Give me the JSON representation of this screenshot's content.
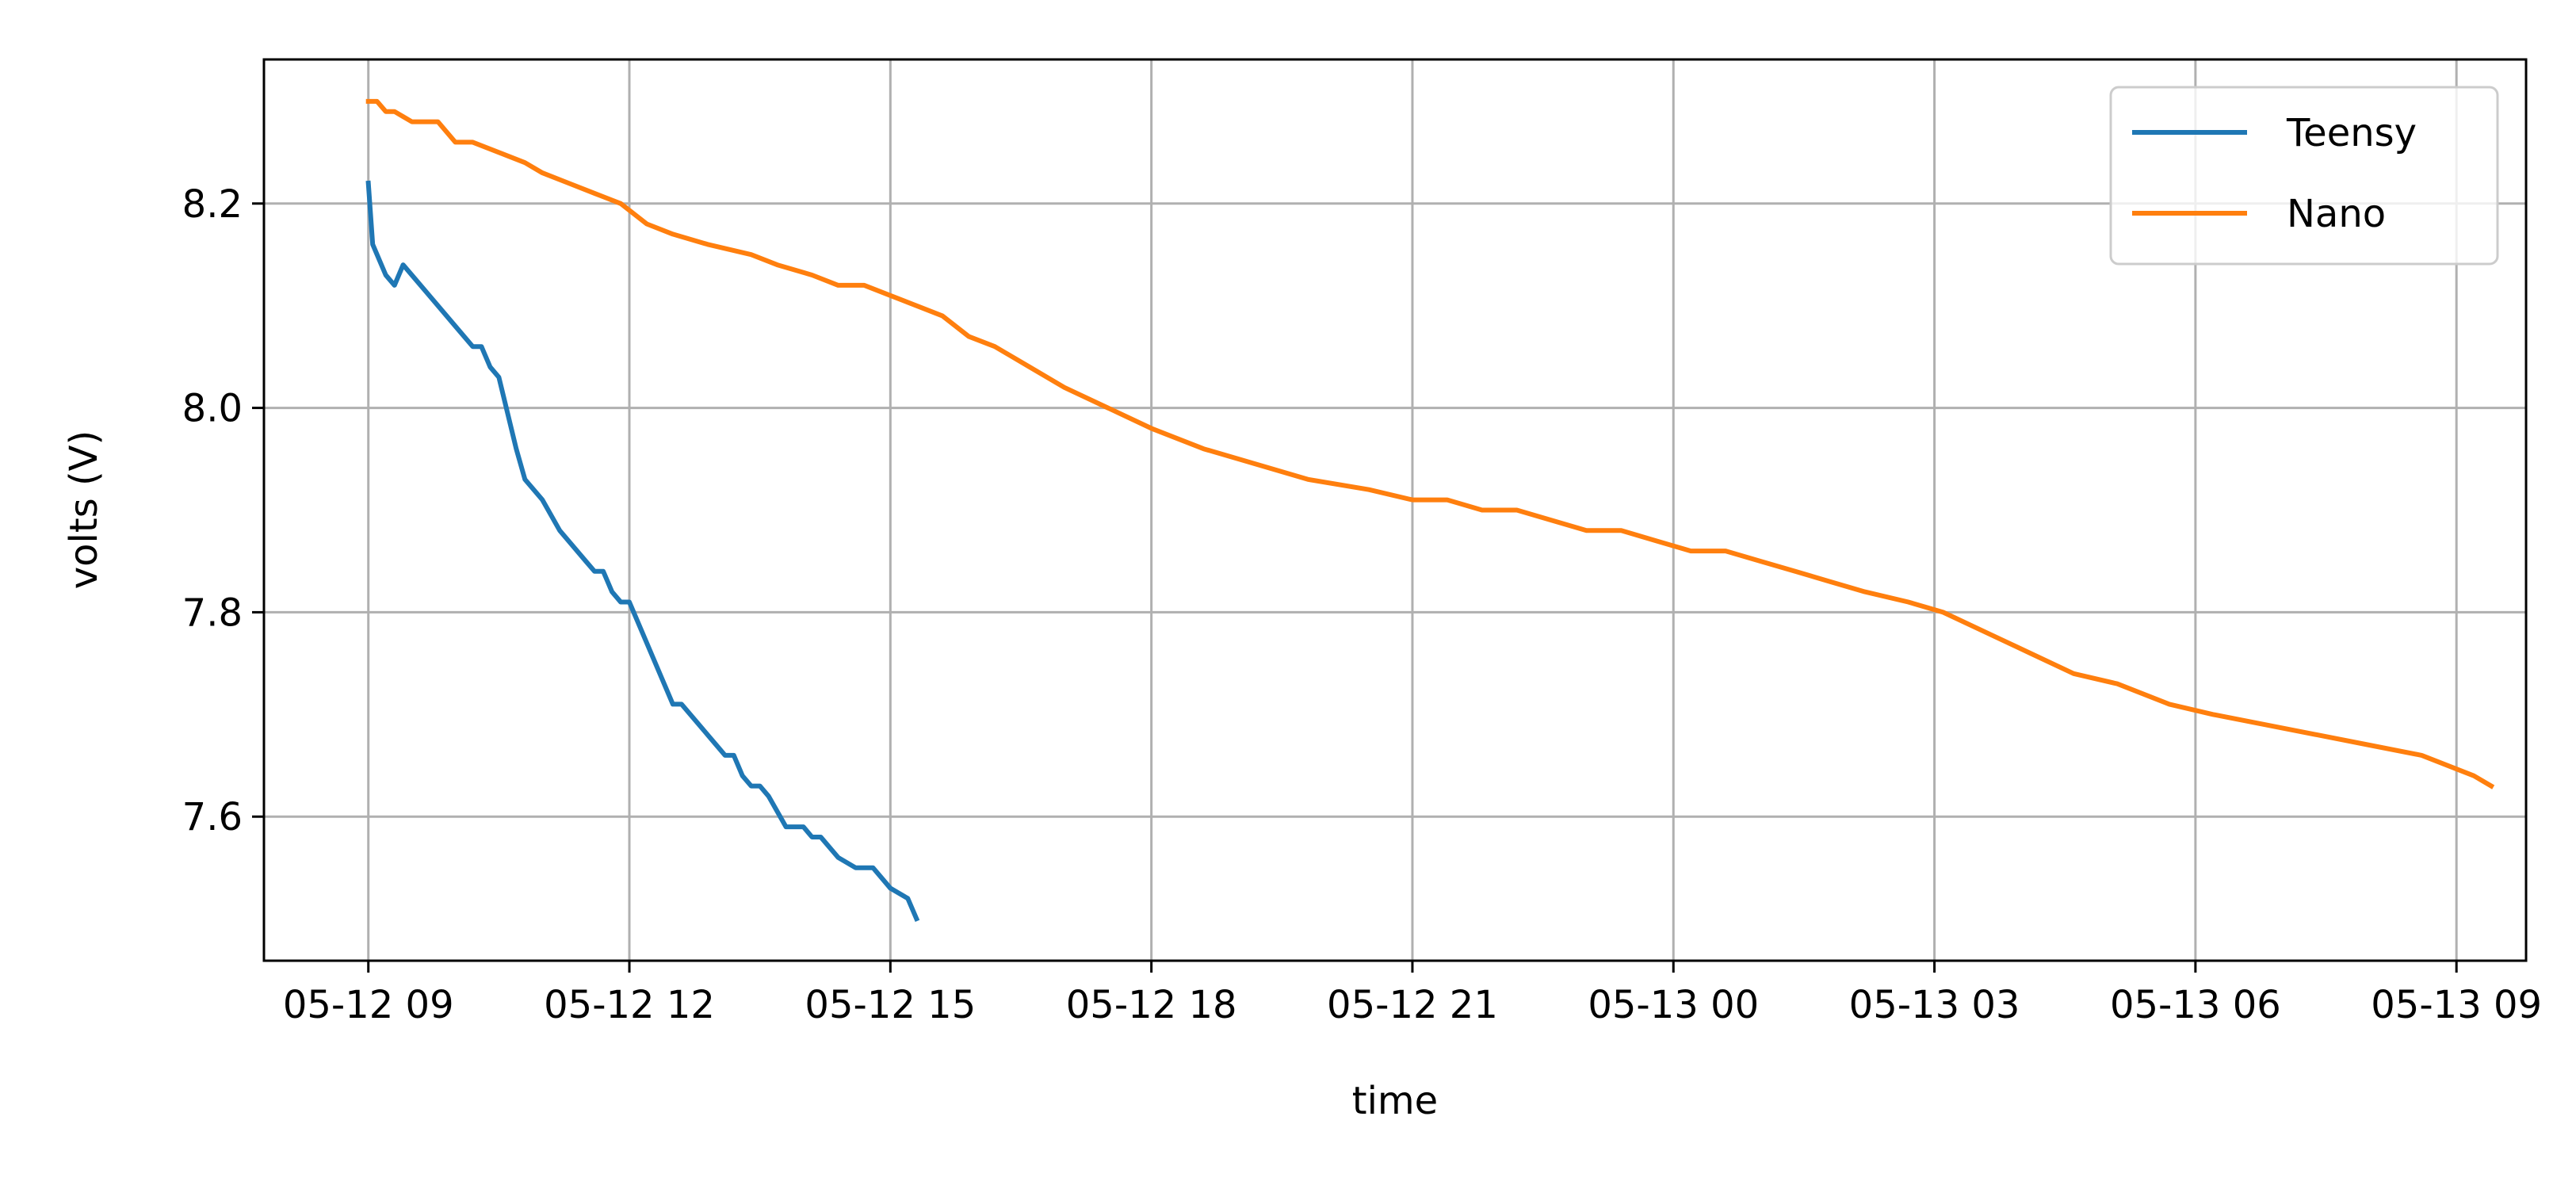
{
  "chart_data": {
    "type": "line",
    "title": "",
    "xlabel": "time",
    "ylabel": "volts (V)",
    "x_ticks": [
      "05-12 09",
      "05-12 12",
      "05-12 15",
      "05-12 18",
      "05-12 21",
      "05-13 00",
      "05-13 03",
      "05-13 06",
      "05-13 09"
    ],
    "xlim": [
      "2024-05-12 07:48",
      "2024-05-13 09:48"
    ],
    "y_ticks": [
      "7.6",
      "7.8",
      "8.0",
      "8.2"
    ],
    "ylim": [
      7.459,
      8.341
    ],
    "grid": true,
    "legend": {
      "placement": "upper-right",
      "entries": [
        "Teensy",
        "Nano"
      ]
    },
    "colors": {
      "Teensy": "#1f77b4",
      "Nano": "#ff7f0e",
      "grid": "#b0b0b0",
      "axes": "#000000"
    },
    "series": [
      {
        "name": "Teensy",
        "x": [
          "05-12 09:00",
          "05-12 09:03",
          "05-12 09:06",
          "05-12 09:12",
          "05-12 09:18",
          "05-12 09:24",
          "05-12 09:30",
          "05-12 09:42",
          "05-12 10:00",
          "05-12 10:12",
          "05-12 10:18",
          "05-12 10:24",
          "05-12 10:30",
          "05-12 10:42",
          "05-12 10:48",
          "05-12 11:00",
          "05-12 11:12",
          "05-12 11:30",
          "05-12 11:36",
          "05-12 11:42",
          "05-12 11:48",
          "05-12 11:54",
          "05-12 12:00",
          "05-12 12:30",
          "05-12 12:36",
          "05-12 13:00",
          "05-12 13:06",
          "05-12 13:12",
          "05-12 13:18",
          "05-12 13:24",
          "05-12 13:30",
          "05-12 13:36",
          "05-12 13:48",
          "05-12 14:00",
          "05-12 14:06",
          "05-12 14:12",
          "05-12 14:24",
          "05-12 14:36",
          "05-12 14:48",
          "05-12 15:00",
          "05-12 15:12",
          "05-12 15:18"
        ],
        "y": [
          8.22,
          8.16,
          8.15,
          8.13,
          8.12,
          8.14,
          8.13,
          8.11,
          8.08,
          8.06,
          8.06,
          8.04,
          8.03,
          7.96,
          7.93,
          7.91,
          7.88,
          7.85,
          7.84,
          7.84,
          7.82,
          7.81,
          7.81,
          7.71,
          7.71,
          7.67,
          7.66,
          7.66,
          7.64,
          7.63,
          7.63,
          7.62,
          7.59,
          7.59,
          7.58,
          7.58,
          7.56,
          7.55,
          7.55,
          7.53,
          7.52,
          7.5
        ]
      },
      {
        "name": "Nano",
        "x": [
          "05-12 09:00",
          "05-12 09:06",
          "05-12 09:12",
          "05-12 09:18",
          "05-12 09:30",
          "05-12 09:48",
          "05-12 10:00",
          "05-12 10:12",
          "05-12 10:30",
          "05-12 10:48",
          "05-12 11:00",
          "05-12 11:18",
          "05-12 11:36",
          "05-12 11:54",
          "05-12 12:12",
          "05-12 12:30",
          "05-12 12:54",
          "05-12 13:24",
          "05-12 13:42",
          "05-12 14:06",
          "05-12 14:24",
          "05-12 14:42",
          "05-12 15:00",
          "05-12 15:18",
          "05-12 15:36",
          "05-12 15:54",
          "05-12 16:12",
          "05-12 16:36",
          "05-12 17:00",
          "05-12 17:30",
          "05-12 18:00",
          "05-12 18:36",
          "05-12 19:00",
          "05-12 19:24",
          "05-12 19:48",
          "05-12 20:30",
          "05-12 21:00",
          "05-12 21:24",
          "05-12 21:48",
          "05-12 22:12",
          "05-12 22:36",
          "05-12 23:00",
          "05-12 23:24",
          "05-12 23:48",
          "05-13 00:12",
          "05-13 00:36",
          "05-13 01:00",
          "05-13 01:24",
          "05-13 01:48",
          "05-13 02:12",
          "05-13 02:42",
          "05-13 03:06",
          "05-13 03:36",
          "05-13 04:06",
          "05-13 04:36",
          "05-13 05:06",
          "05-13 05:42",
          "05-13 06:12",
          "05-13 06:48",
          "05-13 07:24",
          "05-13 08:00",
          "05-13 08:36",
          "05-13 09:12",
          "05-13 09:24"
        ],
        "y": [
          8.3,
          8.3,
          8.29,
          8.29,
          8.28,
          8.28,
          8.26,
          8.26,
          8.25,
          8.24,
          8.23,
          8.22,
          8.21,
          8.2,
          8.18,
          8.17,
          8.16,
          8.15,
          8.14,
          8.13,
          8.12,
          8.12,
          8.11,
          8.1,
          8.09,
          8.07,
          8.06,
          8.04,
          8.02,
          8.0,
          7.98,
          7.96,
          7.95,
          7.94,
          7.93,
          7.92,
          7.91,
          7.91,
          7.9,
          7.9,
          7.89,
          7.88,
          7.88,
          7.87,
          7.86,
          7.86,
          7.85,
          7.84,
          7.83,
          7.82,
          7.81,
          7.8,
          7.78,
          7.76,
          7.74,
          7.73,
          7.71,
          7.7,
          7.69,
          7.68,
          7.67,
          7.66,
          7.64,
          7.63
        ]
      }
    ]
  }
}
